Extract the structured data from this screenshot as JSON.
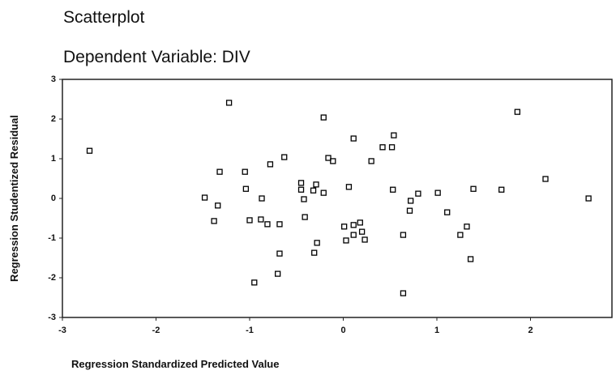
{
  "chart_data": {
    "type": "scatter",
    "title": "Scatterplot",
    "subtitle": "Dependent Variable: DIV",
    "x_label": "Regression Standardized Predicted Value",
    "y_label": "Regression Studentized Residual",
    "color": "#000000",
    "x": [
      -2.71,
      -1.22,
      -0.21,
      1.86,
      0.11,
      0.54,
      0.42,
      0.52,
      0.3,
      -0.63,
      -0.78,
      -0.16,
      -0.11,
      -1.32,
      -1.05,
      -1.04,
      -0.45,
      -0.45,
      -0.32,
      -0.29,
      -0.21,
      0.06,
      0.53,
      0.8,
      1.01,
      1.39,
      1.69,
      2.16,
      2.62,
      -1.48,
      -1.34,
      -0.87,
      -0.42,
      0.72,
      0.71,
      1.11,
      -1.38,
      -1.0,
      -0.88,
      -0.81,
      -0.68,
      -0.41,
      0.01,
      0.11,
      0.18,
      0.2,
      0.11,
      0.23,
      0.03,
      -0.28,
      0.64,
      1.25,
      1.32,
      -0.31,
      -0.68,
      1.36,
      -0.7,
      -0.95,
      0.64
    ],
    "values": [
      1.2,
      2.41,
      2.04,
      2.18,
      1.51,
      1.59,
      1.29,
      1.29,
      0.94,
      1.04,
      0.86,
      1.02,
      0.94,
      0.67,
      0.67,
      0.24,
      0.39,
      0.22,
      0.2,
      0.35,
      0.14,
      0.29,
      0.22,
      0.12,
      0.14,
      0.24,
      0.22,
      0.49,
      0.0,
      0.02,
      -0.18,
      0.0,
      -0.02,
      -0.06,
      -0.31,
      -0.35,
      -0.57,
      -0.55,
      -0.53,
      -0.65,
      -0.65,
      -0.47,
      -0.71,
      -0.67,
      -0.61,
      -0.84,
      -0.92,
      -1.04,
      -1.06,
      -1.12,
      -0.92,
      -0.92,
      -0.71,
      -1.37,
      -1.39,
      -1.53,
      -1.9,
      -2.12,
      -2.39
    ],
    "xlim": [
      -3,
      2.87
    ],
    "xticks": [
      -3,
      -2,
      -1,
      0,
      1,
      2
    ],
    "ylim": [
      -3,
      3
    ],
    "yticks": [
      -3,
      -2,
      -1,
      0,
      1,
      2,
      3
    ]
  }
}
